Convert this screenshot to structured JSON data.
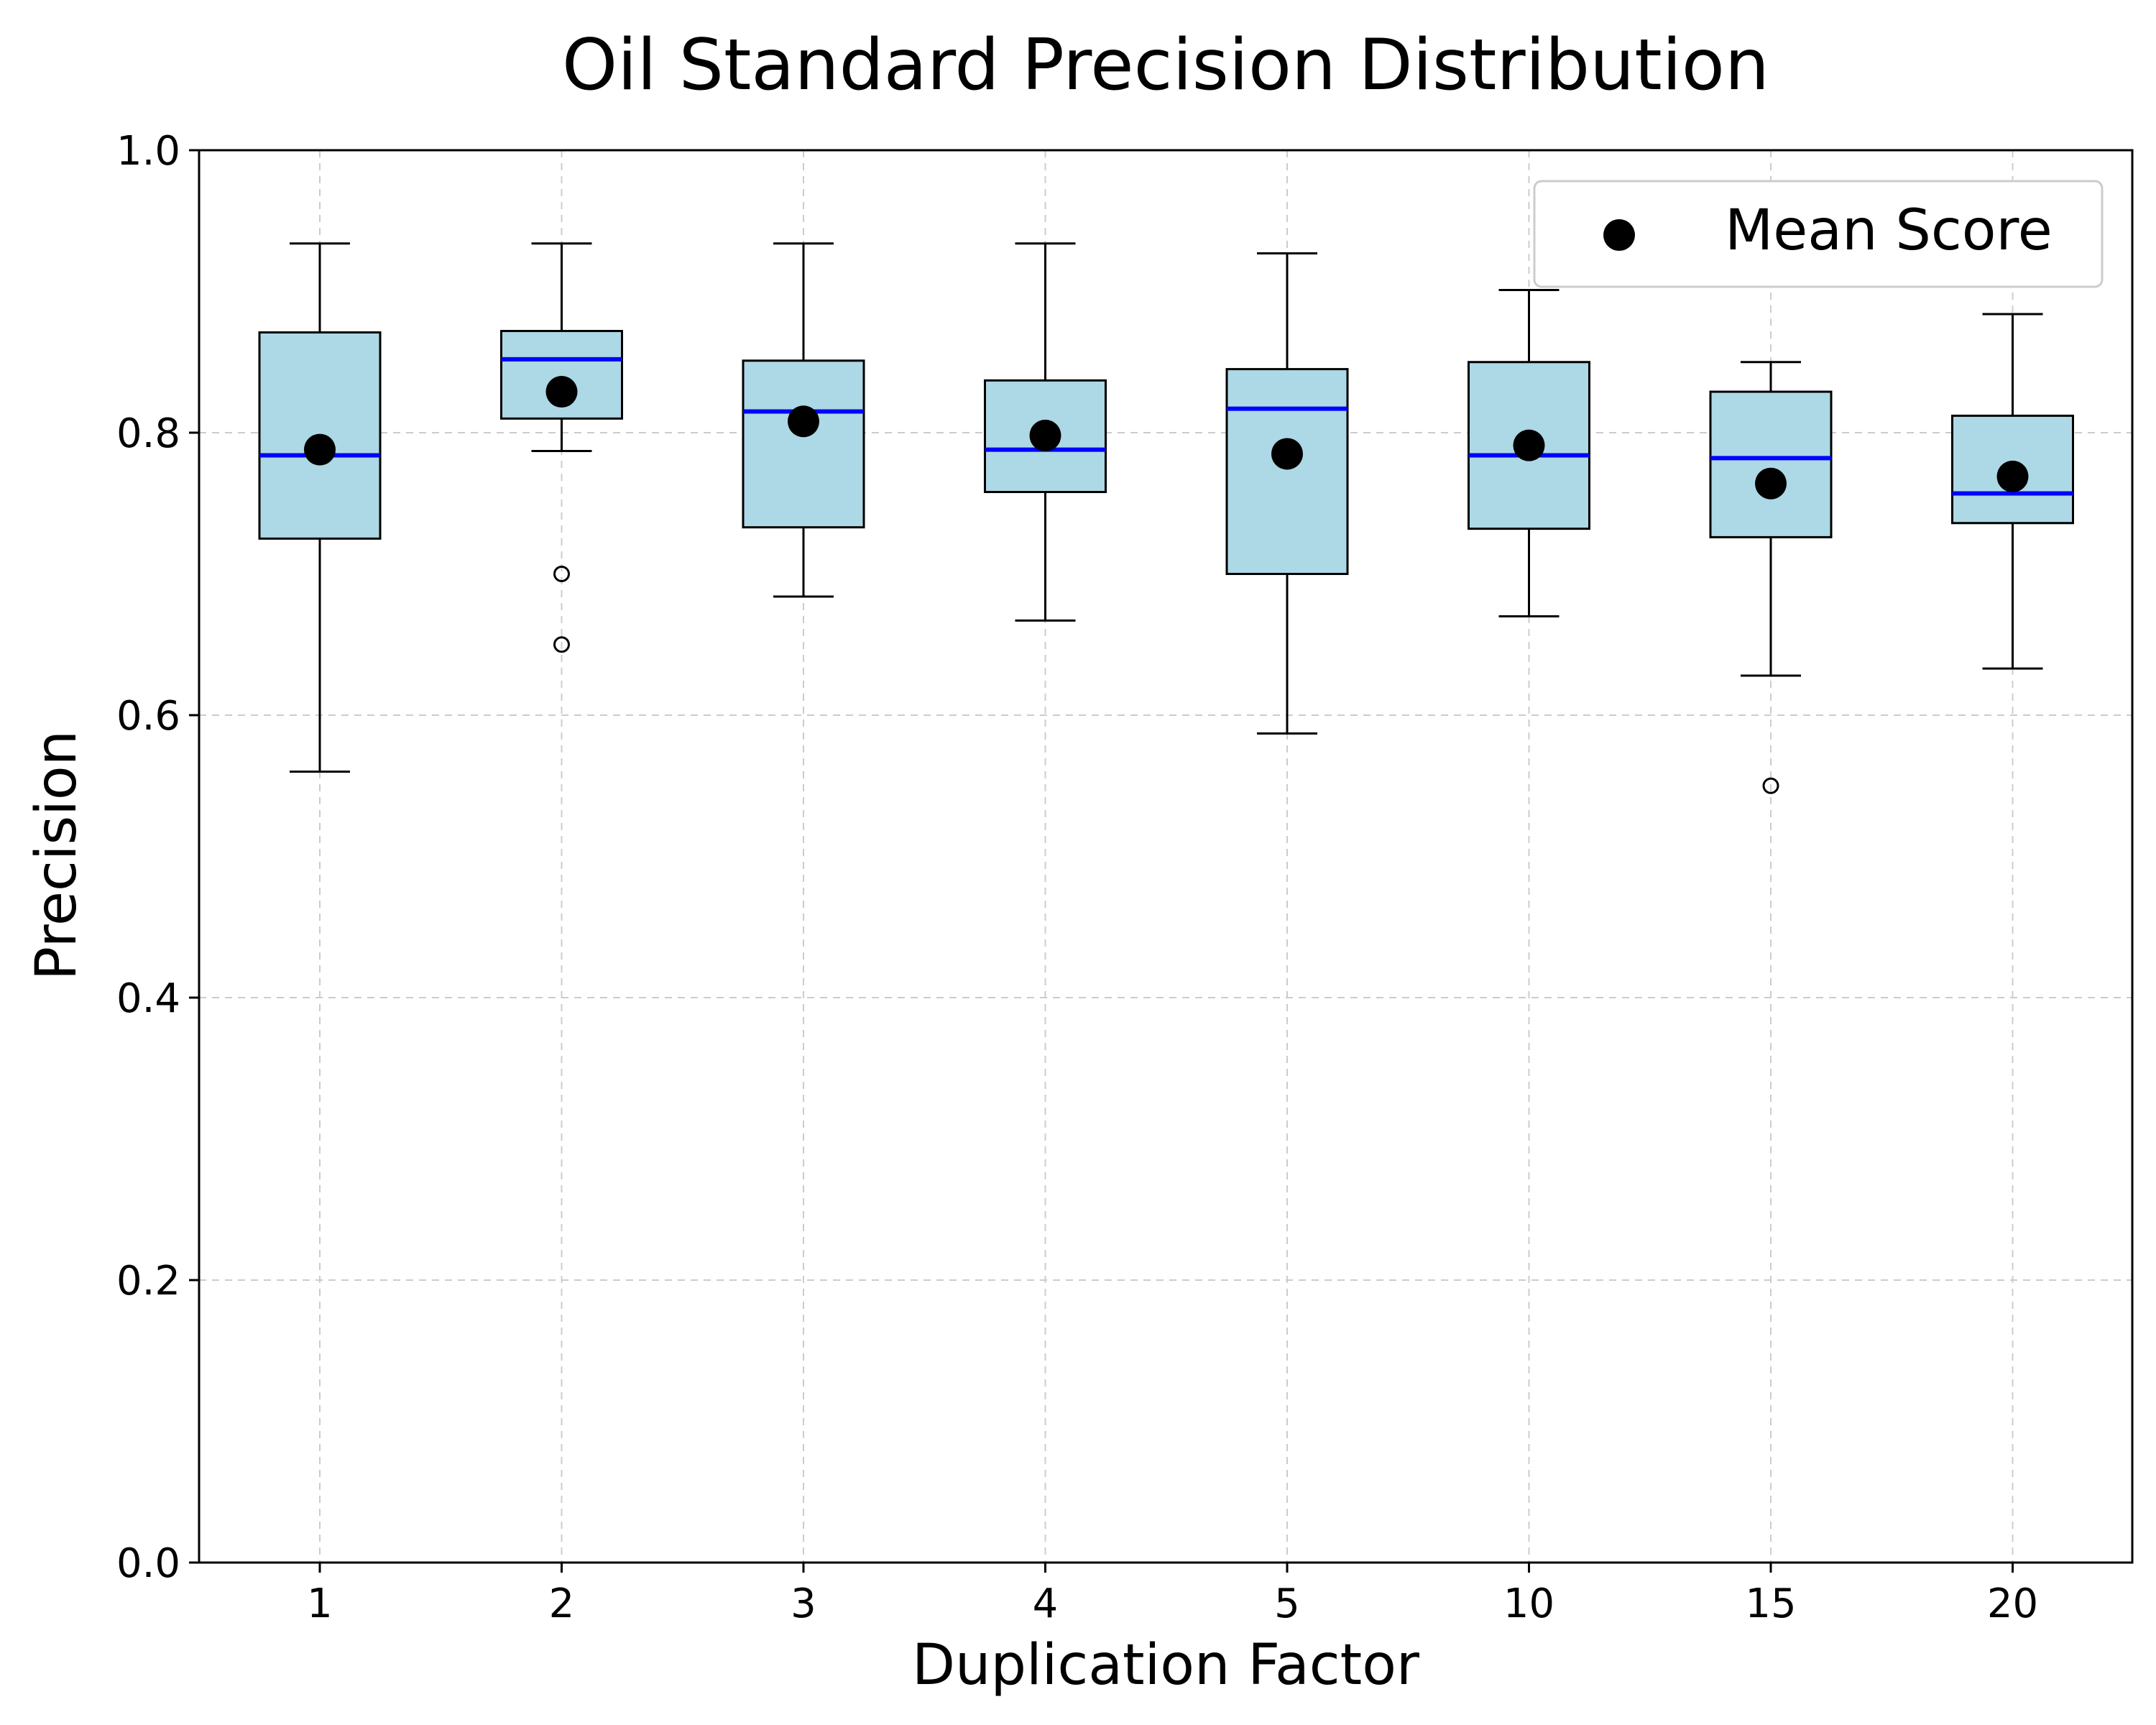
{
  "chart_data": {
    "type": "box",
    "title": "Oil Standard Precision Distribution",
    "xlabel": "Duplication Factor",
    "ylabel": "Precision",
    "ylim": [
      0.0,
      1.0
    ],
    "yticks": [
      "0.0",
      "0.2",
      "0.4",
      "0.6",
      "0.8",
      "1.0"
    ],
    "grid": true,
    "legend": {
      "position": "top-right",
      "entries": [
        "Mean Score"
      ]
    },
    "colors": {
      "box_fill": "#add8e6",
      "median": "#0000ff",
      "mean_marker": "#000000",
      "grid": "#cccccc"
    },
    "categories": [
      "1",
      "2",
      "3",
      "4",
      "5",
      "10",
      "15",
      "20"
    ],
    "boxes": [
      {
        "category": "1",
        "whisker_low": 0.56,
        "q1": 0.725,
        "median": 0.784,
        "q3": 0.871,
        "whisker_high": 0.934,
        "mean": 0.788,
        "outliers": []
      },
      {
        "category": "2",
        "whisker_low": 0.787,
        "q1": 0.81,
        "median": 0.852,
        "q3": 0.872,
        "whisker_high": 0.934,
        "mean": 0.829,
        "outliers": [
          0.7,
          0.65
        ]
      },
      {
        "category": "3",
        "whisker_low": 0.684,
        "q1": 0.733,
        "median": 0.815,
        "q3": 0.851,
        "whisker_high": 0.934,
        "mean": 0.808,
        "outliers": []
      },
      {
        "category": "4",
        "whisker_low": 0.667,
        "q1": 0.758,
        "median": 0.788,
        "q3": 0.837,
        "whisker_high": 0.934,
        "mean": 0.798,
        "outliers": []
      },
      {
        "category": "5",
        "whisker_low": 0.587,
        "q1": 0.7,
        "median": 0.817,
        "q3": 0.845,
        "whisker_high": 0.927,
        "mean": 0.785,
        "outliers": []
      },
      {
        "category": "10",
        "whisker_low": 0.67,
        "q1": 0.732,
        "median": 0.784,
        "q3": 0.85,
        "whisker_high": 0.901,
        "mean": 0.791,
        "outliers": []
      },
      {
        "category": "15",
        "whisker_low": 0.628,
        "q1": 0.726,
        "median": 0.782,
        "q3": 0.829,
        "whisker_high": 0.85,
        "mean": 0.764,
        "outliers": [
          0.55
        ]
      },
      {
        "category": "20",
        "whisker_low": 0.633,
        "q1": 0.736,
        "median": 0.757,
        "q3": 0.812,
        "whisker_high": 0.884,
        "mean": 0.769,
        "outliers": []
      }
    ]
  }
}
